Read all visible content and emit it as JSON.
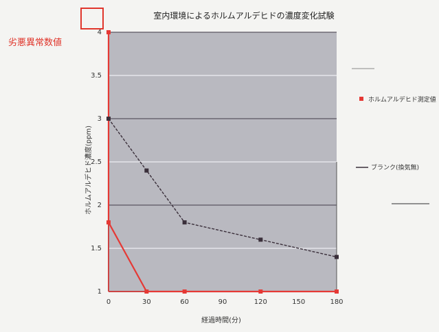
{
  "colors": {
    "plot_bg": "#b9b9c0",
    "page_bg": "#f4f4f2",
    "series_red": "#e53935",
    "series_dark": "#3a2f3a",
    "annotation": "#e0352b",
    "grid_dark": "#5a5560",
    "grid_light": "#e6e6ea"
  },
  "chart_data": {
    "type": "line",
    "title": "室内環境によるホルムアルデヒドの濃度変化試験",
    "xlabel": "経過時間(分)",
    "ylabel": "ホルムアルデヒド濃度(ppm)",
    "x": [
      0,
      30,
      60,
      90,
      120,
      150,
      180
    ],
    "xtick_labels": [
      "0",
      "30",
      "60",
      "90",
      "120",
      "150",
      "180"
    ],
    "yticks": [
      1,
      1.5,
      2,
      2.5,
      3,
      3.5,
      4
    ],
    "ytick_labels": [
      "1",
      "1.5",
      "2",
      "2.5",
      "3",
      "3.5",
      "4"
    ],
    "ylim": [
      1,
      4
    ],
    "xlim": [
      0,
      180
    ],
    "series": [
      {
        "name": "ホルムアルデヒド測定値",
        "color": "#e53935",
        "marker": "square",
        "points": [
          [
            0,
            4.0
          ],
          [
            0,
            1.8
          ],
          [
            30,
            1.0
          ],
          [
            60,
            1.0
          ],
          [
            120,
            1.0
          ],
          [
            180,
            1.0
          ]
        ]
      },
      {
        "name": "ブランク(換気無)",
        "color": "#3a2f3a",
        "marker": "square",
        "points": [
          [
            0,
            3.0
          ],
          [
            30,
            2.4
          ],
          [
            60,
            1.8
          ],
          [
            120,
            1.6
          ],
          [
            180,
            1.4
          ]
        ]
      }
    ],
    "legend": {
      "placement": "right",
      "entries": [
        "ホルムアルデヒド測定値",
        "ブランク(換気無)"
      ]
    },
    "annotation": {
      "text": "劣悪異常数値"
    }
  }
}
